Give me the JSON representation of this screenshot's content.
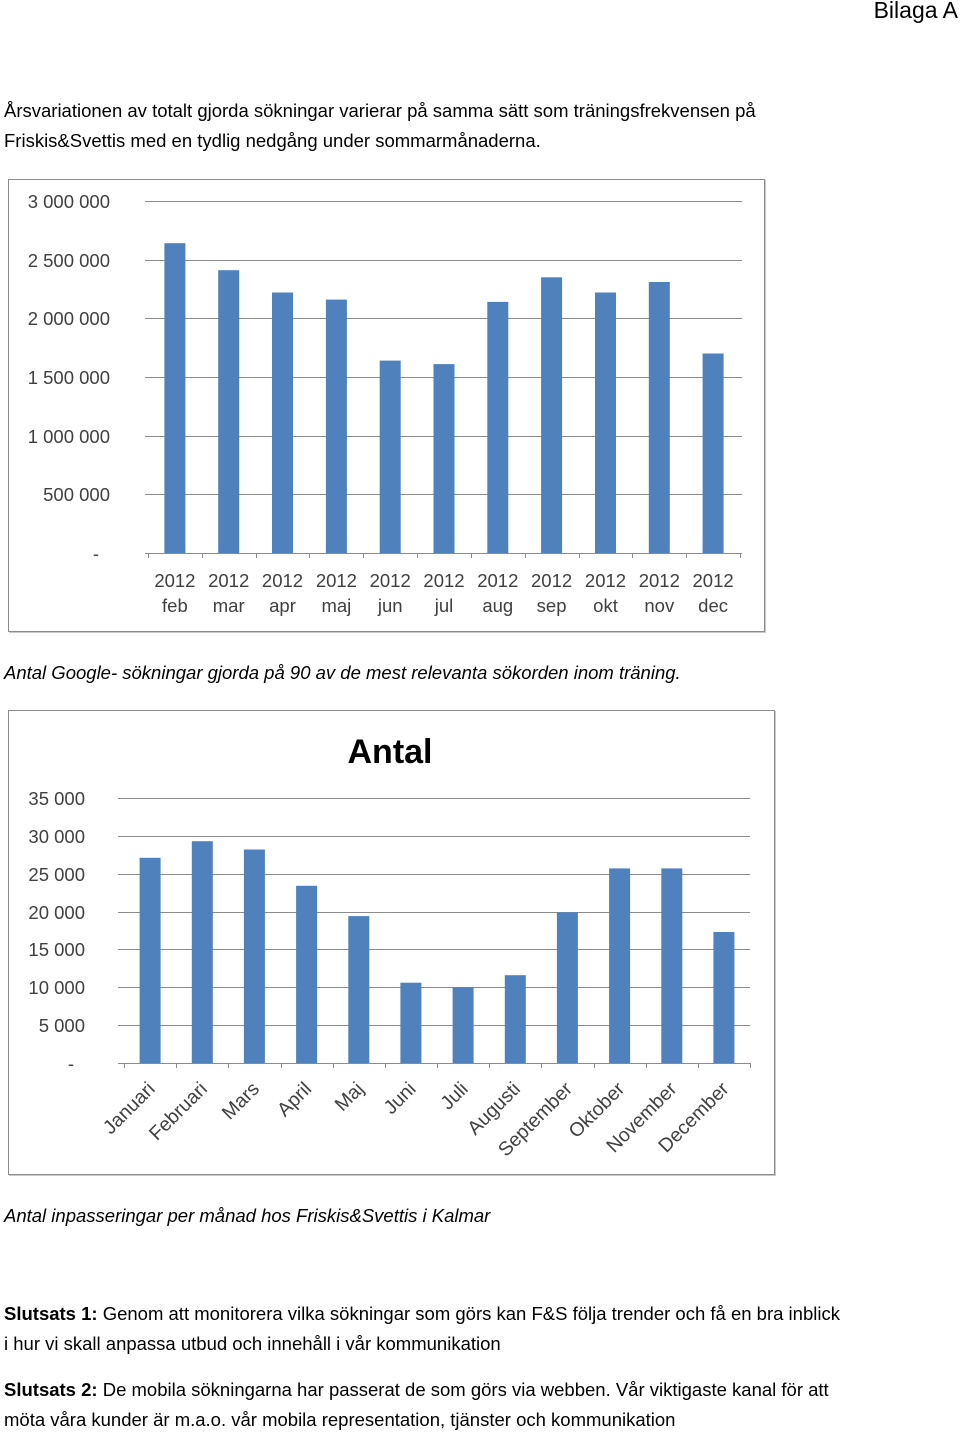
{
  "header": {
    "label": "Bilaga A"
  },
  "intro": {
    "lines": [
      "Årsvariationen av totalt gjorda sökningar varierar på samma sätt som träningsfrekvensen på",
      "Friskis&Svettis med en tydlig nedgång under sommarmånaderna."
    ]
  },
  "captions": {
    "google_searches": "Antal Google- sökningar gjorda på 90 av de mest relevanta sökorden inom träning.",
    "entries": "Antal inpasseringar per månad hos Friskis&Svettis i Kalmar"
  },
  "conclusions": [
    {
      "label": "Slutsats 1:",
      "lines": [
        "Genom att monitorera vilka sökningar som görs kan F&S följa trender och få en bra inblick",
        "i hur vi skall anpassa utbud och innehåll i vår kommunikation"
      ]
    },
    {
      "label": "Slutsats 2:",
      "lines": [
        "De mobila sökningarna har passerat de som görs via webben. Vår viktigaste kanal för att",
        "möta våra kunder är m.a.o. vår mobila representation, tjänster och kommunikation"
      ]
    }
  ],
  "colors": {
    "bar": "#4f81bd",
    "grid": "#8c8c8c",
    "axis_text": "#404040"
  },
  "chart_data": [
    {
      "type": "bar",
      "categories": [
        "2012 feb",
        "2012 mar",
        "2012 apr",
        "2012 maj",
        "2012 jun",
        "2012 jul",
        "2012 aug",
        "2012 sep",
        "2012 okt",
        "2012 nov",
        "2012 dec"
      ],
      "values": [
        2640000,
        2410000,
        2220000,
        2160000,
        1640000,
        1610000,
        2140000,
        2350000,
        2220000,
        2310000,
        1700000
      ],
      "ylim": [
        0,
        3000000
      ],
      "yticks": [
        0,
        500000,
        1000000,
        1500000,
        2000000,
        2500000,
        3000000
      ],
      "ytick_labels": [
        "-",
        "500 000",
        "1 000 000",
        "1 500 000",
        "2 000 000",
        "2 500 000",
        "3 000 000"
      ],
      "grid": true,
      "legend": "none"
    },
    {
      "type": "bar",
      "title": "Antal",
      "categories": [
        "Januari",
        "Februari",
        "Mars",
        "April",
        "Maj",
        "Juni",
        "Juli",
        "Augusti",
        "September",
        "Oktober",
        "November",
        "December"
      ],
      "values": [
        27100,
        29300,
        28200,
        23400,
        19400,
        10600,
        10000,
        11600,
        19900,
        25700,
        25700,
        17300
      ],
      "ylim": [
        0,
        35000
      ],
      "yticks": [
        0,
        5000,
        10000,
        15000,
        20000,
        25000,
        30000,
        35000
      ],
      "ytick_labels": [
        "-",
        "5 000",
        "10 000",
        "15 000",
        "20 000",
        "25 000",
        "30 000",
        "35 000"
      ],
      "grid": true,
      "legend": "none"
    }
  ]
}
